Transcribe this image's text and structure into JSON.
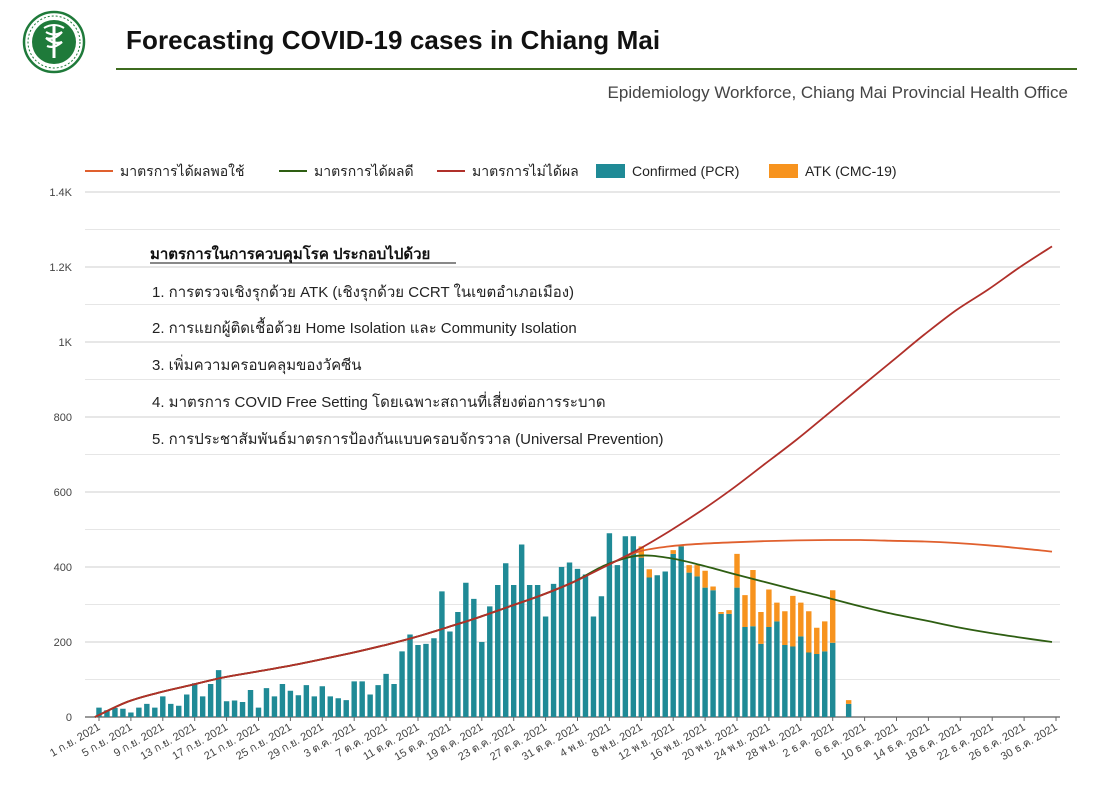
{
  "header": {
    "title": "Forecasting COVID-19 cases in Chiang Mai",
    "subtitle": "Epidemiology Workforce, Chiang Mai Provincial Health Office"
  },
  "colors": {
    "confirmed": "#1f8a96",
    "atk": "#f7931e",
    "moderate": "#e0602e",
    "effective": "#2e5e12",
    "ineffective": "#b0302a",
    "header_rule": "#3e6b1f"
  },
  "legend": [
    {
      "key": "moderate",
      "label": "มาตรการได้ผลพอใช้",
      "kind": "line"
    },
    {
      "key": "effective",
      "label": "มาตรการได้ผลดี",
      "kind": "line"
    },
    {
      "key": "ineffective",
      "label": "มาตรการไม่ได้ผล",
      "kind": "line"
    },
    {
      "key": "confirmed",
      "label": "Confirmed (PCR)",
      "kind": "box"
    },
    {
      "key": "atk",
      "label": "ATK (CMC-19)",
      "kind": "box"
    }
  ],
  "annotation": {
    "heading": "มาตรการในการควบคุมโรค ประกอบไปด้วย",
    "items": [
      "1. การตรวจเชิงรุกด้วย ATK  (เชิงรุกด้วย CCRT ในเขตอำเภอเมือง)",
      "2. การแยกผู้ติดเชื้อด้วย Home Isolation และ Community Isolation",
      "3. เพิ่มความครอบคลุมของวัคซีน",
      "4. มาตรการ COVID Free Setting โดยเฉพาะสถานที่เสี่ยงต่อการระบาด",
      "5. การประชาสัมพันธ์มาตรการป้องกันแบบครอบจักรวาล (Universal Prevention)"
    ]
  },
  "chart_data": {
    "type": "bar",
    "x_unit": "day",
    "x_start": "1 ก.ย. 2021",
    "xlim": [
      "1 ก.ย. 2021",
      "31 ธ.ค. 2021"
    ],
    "ylim": [
      0,
      1400
    ],
    "y_ticks": [
      {
        "value": 0,
        "label": "0"
      },
      {
        "value": 200,
        "label": "200"
      },
      {
        "value": 400,
        "label": "400"
      },
      {
        "value": 600,
        "label": "600"
      },
      {
        "value": 800,
        "label": "800"
      },
      {
        "value": 1000,
        "label": "1K"
      },
      {
        "value": 1200,
        "label": "1.2K"
      },
      {
        "value": 1400,
        "label": "1.4K"
      }
    ],
    "x_ticks": [
      {
        "day": 0,
        "label": "1 ก.ย. 2021"
      },
      {
        "day": 4,
        "label": "5 ก.ย. 2021"
      },
      {
        "day": 8,
        "label": "9 ก.ย. 2021"
      },
      {
        "day": 12,
        "label": "13 ก.ย. 2021"
      },
      {
        "day": 16,
        "label": "17 ก.ย. 2021"
      },
      {
        "day": 20,
        "label": "21 ก.ย. 2021"
      },
      {
        "day": 24,
        "label": "25 ก.ย. 2021"
      },
      {
        "day": 28,
        "label": "29 ก.ย. 2021"
      },
      {
        "day": 32,
        "label": "3 ต.ค. 2021"
      },
      {
        "day": 36,
        "label": "7 ต.ค. 2021"
      },
      {
        "day": 40,
        "label": "11 ต.ค. 2021"
      },
      {
        "day": 44,
        "label": "15 ต.ค. 2021"
      },
      {
        "day": 48,
        "label": "19 ต.ค. 2021"
      },
      {
        "day": 52,
        "label": "23 ต.ค. 2021"
      },
      {
        "day": 56,
        "label": "27 ต.ค. 2021"
      },
      {
        "day": 60,
        "label": "31 ต.ค. 2021"
      },
      {
        "day": 64,
        "label": "4 พ.ย. 2021"
      },
      {
        "day": 68,
        "label": "8 พ.ย. 2021"
      },
      {
        "day": 72,
        "label": "12 พ.ย. 2021"
      },
      {
        "day": 76,
        "label": "16 พ.ย. 2021"
      },
      {
        "day": 80,
        "label": "20 พ.ย. 2021"
      },
      {
        "day": 84,
        "label": "24 พ.ย. 2021"
      },
      {
        "day": 88,
        "label": "28 พ.ย. 2021"
      },
      {
        "day": 92,
        "label": "2 ธ.ค. 2021"
      },
      {
        "day": 96,
        "label": "6 ธ.ค. 2021"
      },
      {
        "day": 100,
        "label": "10 ธ.ค. 2021"
      },
      {
        "day": 104,
        "label": "14 ธ.ค. 2021"
      },
      {
        "day": 108,
        "label": "18 ธ.ค. 2021"
      },
      {
        "day": 112,
        "label": "22 ธ.ค. 2021"
      },
      {
        "day": 116,
        "label": "26 ธ.ค. 2021"
      },
      {
        "day": 120,
        "label": "30 ธ.ค. 2021"
      }
    ],
    "bars": {
      "start_day": 0,
      "confirmed": [
        25,
        18,
        24,
        22,
        12,
        25,
        35,
        25,
        55,
        35,
        30,
        60,
        90,
        55,
        88,
        125,
        42,
        44,
        40,
        72,
        25,
        77,
        55,
        88,
        70,
        58,
        85,
        55,
        82,
        55,
        50,
        45,
        95,
        95,
        60,
        85,
        115,
        88,
        175,
        220,
        192,
        195,
        210,
        335,
        228,
        280,
        358,
        315,
        200,
        295,
        352,
        410,
        352,
        460,
        352,
        352,
        268,
        355,
        400,
        412,
        395,
        380,
        268,
        322,
        490,
        405,
        482,
        482,
        425,
        372,
        378,
        388,
        435,
        455,
        385,
        375,
        345,
        338,
        275,
        275,
        345,
        240,
        242,
        195,
        240,
        255,
        192,
        188,
        215,
        172,
        168,
        175,
        198,
        0,
        35
      ],
      "atk": [
        0,
        0,
        0,
        0,
        0,
        0,
        0,
        0,
        0,
        0,
        0,
        0,
        0,
        0,
        0,
        0,
        0,
        0,
        0,
        0,
        0,
        0,
        0,
        0,
        0,
        0,
        0,
        0,
        0,
        0,
        0,
        0,
        0,
        0,
        0,
        0,
        0,
        0,
        0,
        0,
        0,
        0,
        0,
        0,
        0,
        0,
        0,
        0,
        0,
        0,
        0,
        0,
        0,
        0,
        0,
        0,
        0,
        0,
        0,
        0,
        0,
        0,
        0,
        0,
        0,
        0,
        0,
        0,
        30,
        22,
        0,
        0,
        10,
        5,
        20,
        30,
        45,
        10,
        5,
        10,
        90,
        85,
        150,
        85,
        100,
        50,
        90,
        135,
        90,
        110,
        70,
        80,
        140,
        0,
        10
      ]
    },
    "series": [
      {
        "key": "moderate",
        "name": "มาตรการได้ผลพอใช้",
        "points": [
          [
            0,
            0
          ],
          [
            4,
            40
          ],
          [
            8,
            65
          ],
          [
            12,
            85
          ],
          [
            16,
            105
          ],
          [
            20,
            120
          ],
          [
            24,
            135
          ],
          [
            28,
            152
          ],
          [
            32,
            170
          ],
          [
            36,
            190
          ],
          [
            40,
            212
          ],
          [
            44,
            238
          ],
          [
            48,
            265
          ],
          [
            52,
            295
          ],
          [
            56,
            325
          ],
          [
            60,
            360
          ],
          [
            64,
            402
          ],
          [
            68,
            440
          ],
          [
            72,
            455
          ],
          [
            76,
            462
          ],
          [
            80,
            466
          ],
          [
            84,
            469
          ],
          [
            88,
            471
          ],
          [
            92,
            472
          ],
          [
            96,
            472
          ],
          [
            100,
            470
          ],
          [
            104,
            468
          ],
          [
            108,
            464
          ],
          [
            112,
            458
          ],
          [
            116,
            450
          ],
          [
            120,
            441
          ]
        ]
      },
      {
        "key": "effective",
        "name": "มาตรการได้ผลดี",
        "points": [
          [
            0,
            0
          ],
          [
            4,
            40
          ],
          [
            8,
            65
          ],
          [
            12,
            85
          ],
          [
            16,
            105
          ],
          [
            20,
            120
          ],
          [
            24,
            135
          ],
          [
            28,
            152
          ],
          [
            32,
            170
          ],
          [
            36,
            190
          ],
          [
            40,
            212
          ],
          [
            44,
            238
          ],
          [
            48,
            265
          ],
          [
            52,
            295
          ],
          [
            56,
            325
          ],
          [
            60,
            360
          ],
          [
            64,
            405
          ],
          [
            68,
            430
          ],
          [
            72,
            424
          ],
          [
            76,
            405
          ],
          [
            80,
            382
          ],
          [
            84,
            360
          ],
          [
            88,
            338
          ],
          [
            92,
            317
          ],
          [
            96,
            295
          ],
          [
            100,
            275
          ],
          [
            104,
            258
          ],
          [
            108,
            240
          ],
          [
            112,
            225
          ],
          [
            116,
            212
          ],
          [
            120,
            200
          ]
        ]
      },
      {
        "key": "ineffective",
        "name": "มาตรการไม่ได้ผล",
        "points": [
          [
            0,
            0
          ],
          [
            4,
            40
          ],
          [
            8,
            65
          ],
          [
            12,
            85
          ],
          [
            16,
            105
          ],
          [
            20,
            120
          ],
          [
            24,
            135
          ],
          [
            28,
            152
          ],
          [
            32,
            170
          ],
          [
            36,
            190
          ],
          [
            40,
            212
          ],
          [
            44,
            238
          ],
          [
            48,
            265
          ],
          [
            52,
            295
          ],
          [
            56,
            325
          ],
          [
            60,
            360
          ],
          [
            64,
            402
          ],
          [
            68,
            445
          ],
          [
            72,
            495
          ],
          [
            76,
            550
          ],
          [
            80,
            610
          ],
          [
            84,
            675
          ],
          [
            88,
            740
          ],
          [
            92,
            810
          ],
          [
            96,
            880
          ],
          [
            100,
            950
          ],
          [
            104,
            1020
          ],
          [
            108,
            1085
          ],
          [
            112,
            1140
          ],
          [
            116,
            1200
          ],
          [
            120,
            1255
          ]
        ]
      }
    ]
  }
}
